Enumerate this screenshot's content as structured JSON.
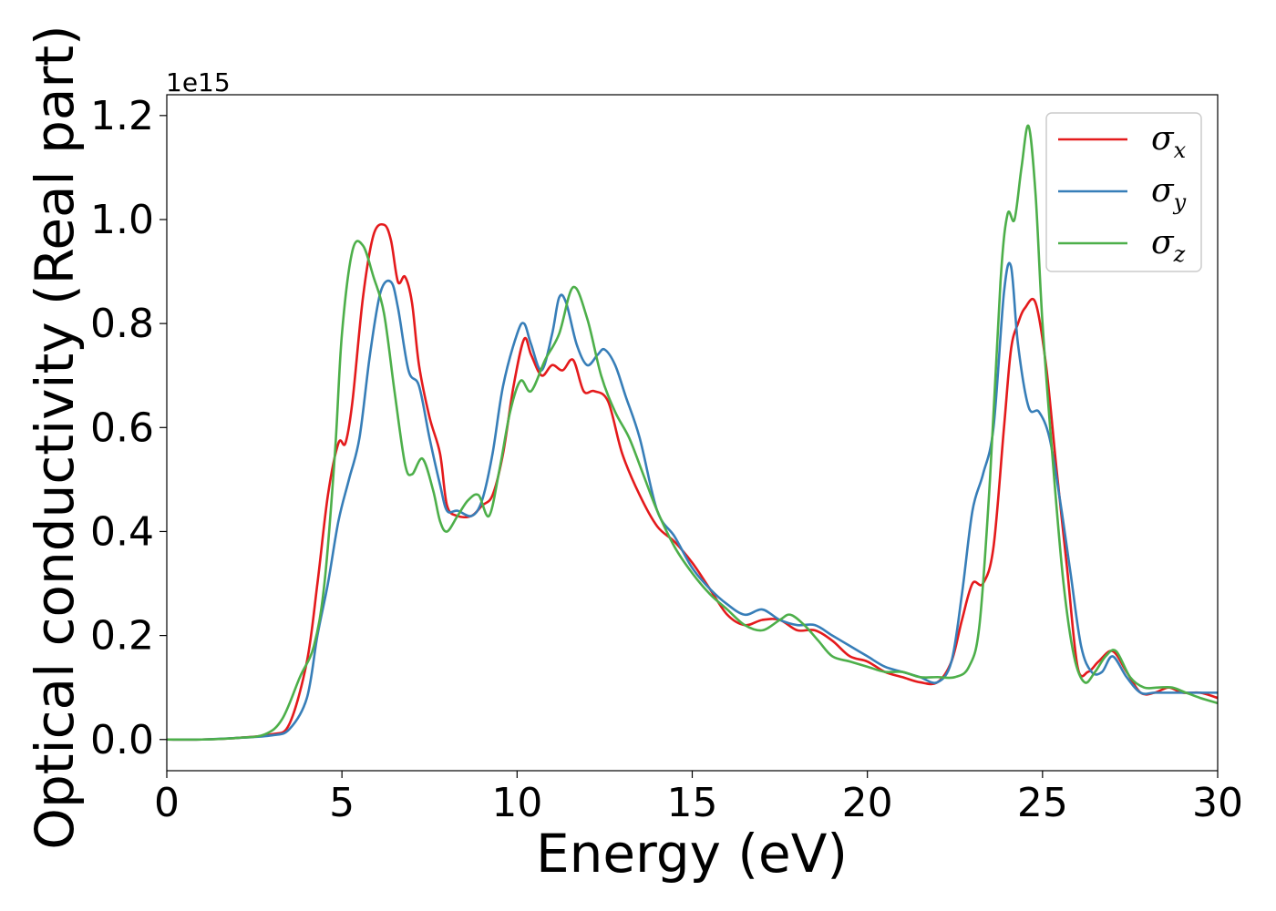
{
  "chart_data": {
    "type": "line",
    "title": "",
    "xlabel": "Energy (eV)",
    "ylabel": "Optical conductivity (Real part)",
    "y_offset_label": "1e15",
    "xlim": [
      0,
      30
    ],
    "ylim": [
      -0.06,
      1.24
    ],
    "xticks": [
      0,
      5,
      10,
      15,
      20,
      25,
      30
    ],
    "yticks": [
      0.0,
      0.2,
      0.4,
      0.6,
      0.8,
      1.0,
      1.2
    ],
    "xtick_labels": [
      "0",
      "5",
      "10",
      "15",
      "20",
      "25",
      "30"
    ],
    "ytick_labels": [
      "0.0",
      "0.2",
      "0.4",
      "0.6",
      "0.8",
      "1.0",
      "1.2"
    ],
    "grid": false,
    "legend": {
      "position": "top-right",
      "labels": [
        "σx",
        "σy",
        "σz"
      ]
    },
    "series": [
      {
        "name": "σx",
        "symbol": "σ",
        "subscript": "x",
        "color": "#e41a1c",
        "x": [
          0,
          1,
          2,
          3,
          3.5,
          4,
          4.3,
          4.6,
          4.9,
          5.1,
          5.3,
          5.6,
          5.9,
          6.2,
          6.4,
          6.6,
          6.8,
          7.0,
          7.2,
          7.5,
          7.8,
          8.0,
          8.3,
          8.7,
          9.0,
          9.3,
          9.6,
          9.9,
          10.2,
          10.4,
          10.7,
          11.0,
          11.3,
          11.6,
          11.9,
          12.2,
          12.6,
          13.0,
          13.5,
          14.0,
          14.5,
          15.0,
          15.5,
          16.0,
          16.5,
          17.0,
          17.5,
          18.0,
          18.5,
          19.0,
          19.5,
          20.0,
          20.5,
          21.0,
          21.5,
          22.0,
          22.4,
          22.7,
          23.0,
          23.3,
          23.6,
          23.9,
          24.1,
          24.3,
          24.5,
          24.8,
          25.1,
          25.4,
          25.7,
          26.0,
          26.3,
          26.6,
          27.0,
          27.4,
          27.8,
          28.2,
          28.6,
          29.0,
          29.5,
          30.0
        ],
        "values": [
          0.0,
          0.0,
          0.003,
          0.01,
          0.03,
          0.15,
          0.3,
          0.47,
          0.57,
          0.57,
          0.65,
          0.85,
          0.97,
          0.99,
          0.96,
          0.88,
          0.89,
          0.84,
          0.72,
          0.62,
          0.55,
          0.45,
          0.43,
          0.43,
          0.45,
          0.47,
          0.55,
          0.68,
          0.77,
          0.74,
          0.7,
          0.72,
          0.71,
          0.73,
          0.67,
          0.67,
          0.65,
          0.55,
          0.47,
          0.41,
          0.38,
          0.34,
          0.29,
          0.24,
          0.22,
          0.23,
          0.23,
          0.21,
          0.21,
          0.19,
          0.16,
          0.15,
          0.13,
          0.12,
          0.11,
          0.11,
          0.15,
          0.23,
          0.3,
          0.3,
          0.37,
          0.6,
          0.75,
          0.8,
          0.83,
          0.84,
          0.72,
          0.52,
          0.33,
          0.14,
          0.13,
          0.15,
          0.17,
          0.13,
          0.09,
          0.09,
          0.1,
          0.09,
          0.09,
          0.08
        ]
      },
      {
        "name": "σy",
        "symbol": "σ",
        "subscript": "y",
        "color": "#377eb8",
        "x": [
          0,
          1,
          2,
          3,
          3.5,
          4,
          4.3,
          4.6,
          4.9,
          5.2,
          5.5,
          5.8,
          6.1,
          6.4,
          6.6,
          6.9,
          7.2,
          7.5,
          7.8,
          8.0,
          8.3,
          8.7,
          9.0,
          9.3,
          9.6,
          10.0,
          10.2,
          10.4,
          10.7,
          11.0,
          11.2,
          11.4,
          11.7,
          12.0,
          12.3,
          12.5,
          12.8,
          13.1,
          13.5,
          14.0,
          14.5,
          15.0,
          15.5,
          16.0,
          16.5,
          17.0,
          17.5,
          18.0,
          18.5,
          19.0,
          19.5,
          20.0,
          20.5,
          21.0,
          21.5,
          22.0,
          22.4,
          22.7,
          23.0,
          23.3,
          23.6,
          23.9,
          24.1,
          24.3,
          24.6,
          24.9,
          25.2,
          25.5,
          25.8,
          26.1,
          26.4,
          26.7,
          27.0,
          27.4,
          27.8,
          28.2,
          28.6,
          29.0,
          29.5,
          30.0
        ],
        "values": [
          0.0,
          0.0,
          0.003,
          0.008,
          0.02,
          0.08,
          0.2,
          0.3,
          0.42,
          0.5,
          0.58,
          0.74,
          0.86,
          0.88,
          0.83,
          0.71,
          0.68,
          0.58,
          0.49,
          0.44,
          0.44,
          0.43,
          0.46,
          0.55,
          0.68,
          0.78,
          0.8,
          0.76,
          0.71,
          0.78,
          0.85,
          0.84,
          0.76,
          0.72,
          0.74,
          0.75,
          0.72,
          0.66,
          0.58,
          0.44,
          0.39,
          0.33,
          0.29,
          0.26,
          0.24,
          0.25,
          0.23,
          0.22,
          0.22,
          0.2,
          0.18,
          0.16,
          0.14,
          0.13,
          0.12,
          0.11,
          0.15,
          0.28,
          0.44,
          0.51,
          0.6,
          0.86,
          0.91,
          0.76,
          0.64,
          0.63,
          0.58,
          0.46,
          0.32,
          0.18,
          0.13,
          0.13,
          0.16,
          0.12,
          0.09,
          0.09,
          0.09,
          0.09,
          0.09,
          0.09
        ]
      },
      {
        "name": "σz",
        "symbol": "σ",
        "subscript": "z",
        "color": "#4daf4a",
        "x": [
          0,
          1,
          2,
          2.8,
          3.3,
          3.8,
          4.2,
          4.5,
          4.8,
          5.0,
          5.3,
          5.6,
          5.9,
          6.2,
          6.5,
          6.8,
          7.0,
          7.3,
          7.6,
          7.8,
          8.0,
          8.3,
          8.6,
          8.9,
          9.2,
          9.5,
          9.8,
          10.1,
          10.4,
          10.8,
          11.2,
          11.6,
          12.0,
          12.4,
          12.8,
          13.2,
          13.6,
          14.0,
          14.5,
          15.0,
          15.5,
          16.0,
          16.5,
          17.0,
          17.5,
          17.8,
          18.2,
          18.6,
          19.0,
          19.5,
          20.0,
          20.5,
          21.0,
          21.5,
          22.0,
          22.5,
          22.9,
          23.2,
          23.5,
          23.8,
          24.0,
          24.2,
          24.4,
          24.6,
          24.8,
          25.0,
          25.3,
          25.6,
          25.9,
          26.2,
          26.5,
          26.8,
          27.1,
          27.5,
          27.9,
          28.3,
          28.7,
          29.1,
          29.5,
          30.0
        ],
        "values": [
          0.0,
          0.0,
          0.003,
          0.01,
          0.04,
          0.12,
          0.18,
          0.3,
          0.55,
          0.78,
          0.94,
          0.95,
          0.89,
          0.82,
          0.67,
          0.53,
          0.51,
          0.54,
          0.48,
          0.42,
          0.4,
          0.43,
          0.46,
          0.47,
          0.43,
          0.52,
          0.63,
          0.69,
          0.67,
          0.73,
          0.78,
          0.87,
          0.81,
          0.7,
          0.63,
          0.58,
          0.51,
          0.44,
          0.37,
          0.32,
          0.28,
          0.25,
          0.22,
          0.21,
          0.23,
          0.24,
          0.22,
          0.19,
          0.16,
          0.15,
          0.14,
          0.13,
          0.13,
          0.12,
          0.12,
          0.12,
          0.14,
          0.22,
          0.5,
          0.88,
          1.01,
          1.0,
          1.1,
          1.18,
          1.05,
          0.8,
          0.53,
          0.3,
          0.16,
          0.11,
          0.13,
          0.16,
          0.17,
          0.12,
          0.1,
          0.1,
          0.1,
          0.09,
          0.08,
          0.07
        ]
      }
    ]
  }
}
